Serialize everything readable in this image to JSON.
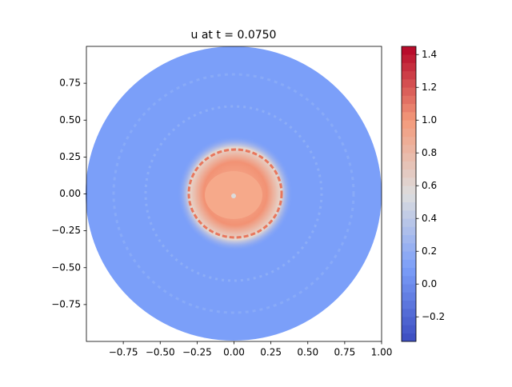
{
  "chart_data": {
    "type": "contour",
    "title": "u at t = 0.0750",
    "xlim": [
      -1,
      1
    ],
    "ylim": [
      -1,
      1
    ],
    "xticks": [
      {
        "value": -0.75,
        "label": "−0.75"
      },
      {
        "value": -0.5,
        "label": "−0.50"
      },
      {
        "value": -0.25,
        "label": "−0.25"
      },
      {
        "value": 0,
        "label": "0.00"
      },
      {
        "value": 0.25,
        "label": "0.25"
      },
      {
        "value": 0.5,
        "label": "0.50"
      },
      {
        "value": 0.75,
        "label": "0.75"
      },
      {
        "value": 1,
        "label": "1.00"
      }
    ],
    "yticks": [
      {
        "value": -0.75,
        "label": "−0.75"
      },
      {
        "value": -0.5,
        "label": "−0.50"
      },
      {
        "value": -0.25,
        "label": "−0.25"
      },
      {
        "value": 0,
        "label": "0.00"
      },
      {
        "value": 0.25,
        "label": "0.25"
      },
      {
        "value": 0.5,
        "label": "0.50"
      },
      {
        "value": 0.75,
        "label": "0.75"
      }
    ],
    "colorbar": {
      "lim": [
        -0.35,
        1.45
      ],
      "colormap": "coolwarm",
      "ticks": [
        {
          "value": -0.2,
          "label": "−0.2"
        },
        {
          "value": 0,
          "label": "0.0"
        },
        0.2,
        0.4,
        0.6,
        0.8,
        {
          "value": 1,
          "label": "1.0"
        },
        1.2,
        1.4
      ]
    }
  }
}
